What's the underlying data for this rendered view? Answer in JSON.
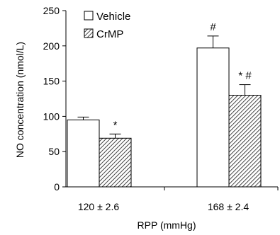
{
  "chart_data": {
    "type": "bar",
    "categories": [
      "120 ± 2.6",
      "168 ± 2.4"
    ],
    "series": [
      {
        "name": "Vehicle",
        "values": [
          95,
          197
        ],
        "errors": [
          4,
          17
        ],
        "fill": "#ffffff",
        "pattern": "none"
      },
      {
        "name": "CrMP",
        "values": [
          69,
          130
        ],
        "errors": [
          6,
          15
        ],
        "fill": "#ffffff",
        "pattern": "diagonal-hatch"
      }
    ],
    "annotations": [
      {
        "category_index": 0,
        "series_index": 1,
        "text": "*"
      },
      {
        "category_index": 1,
        "series_index": 0,
        "text": "#"
      },
      {
        "category_index": 1,
        "series_index": 1,
        "text": "* #"
      }
    ],
    "xlabel": "RPP (mmHg)",
    "ylabel": "NO concentration (nmol/L)",
    "ylim": [
      0,
      250
    ],
    "yticks": [
      0,
      50,
      100,
      150,
      200,
      250
    ],
    "grid": false,
    "legend_position": "top-left",
    "colors": {
      "stroke": "#000000",
      "hatch": "#444444",
      "background": "#ffffff"
    }
  }
}
